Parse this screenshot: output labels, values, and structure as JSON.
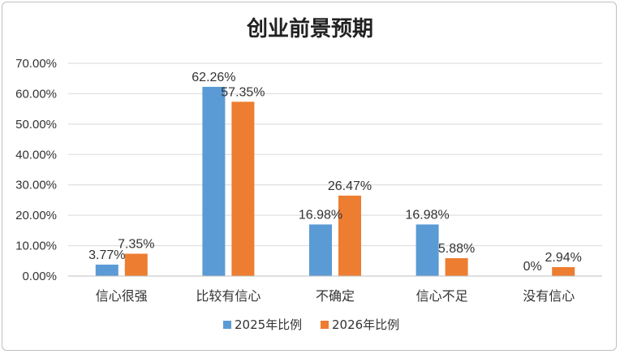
{
  "chart_data": {
    "type": "bar",
    "title": "创业前景预期",
    "categories": [
      "信心很强",
      "比较有信心",
      "不确定",
      "信心不足",
      "没有信心"
    ],
    "series": [
      {
        "name": "2025年比例",
        "color": "#5b9bd5",
        "values": [
          3.77,
          62.26,
          16.98,
          16.98,
          0
        ],
        "labels": [
          "3.77%",
          "62.26%",
          "16.98%",
          "16.98%",
          "0%"
        ]
      },
      {
        "name": "2026年比例",
        "color": "#ed7d31",
        "values": [
          7.35,
          57.35,
          26.47,
          5.88,
          2.94
        ],
        "labels": [
          "7.35%",
          "57.35%",
          "26.47%",
          "5.88%",
          "2.94%"
        ]
      }
    ],
    "ylim": [
      0,
      70
    ],
    "yticks": [
      "0.00%",
      "10.00%",
      "20.00%",
      "30.00%",
      "40.00%",
      "50.00%",
      "60.00%",
      "70.00%"
    ],
    "grid": true,
    "legend_position": "bottom"
  }
}
